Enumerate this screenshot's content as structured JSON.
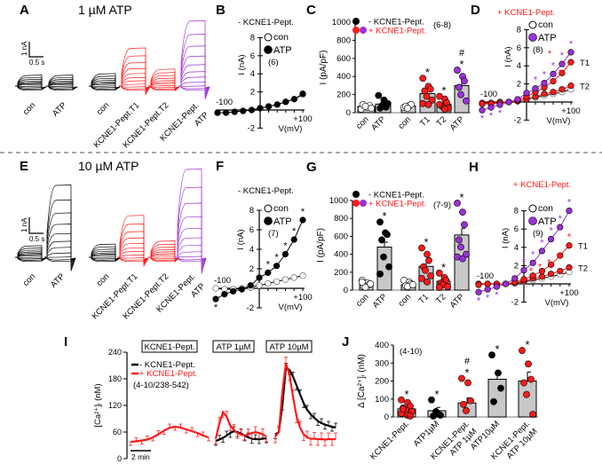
{
  "chart_data": [
    {
      "id": "A",
      "panel": "A",
      "type": "traces",
      "title": "1 µM ATP",
      "scale": {
        "y": "1 nA",
        "x": "0.5 s"
      },
      "groups": [
        {
          "label": [
            "con"
          ],
          "color": "#000000",
          "peak_nA": 0.7
        },
        {
          "label": [
            "ATP"
          ],
          "color": "#000000",
          "peak_nA": 0.7
        },
        {
          "label": [
            "con"
          ],
          "color": "#000000",
          "peak_nA": 0.8
        },
        {
          "label": [
            "KCNE1-Pept.T1"
          ],
          "color": "#ff1a1a",
          "peak_nA": 2.5
        },
        {
          "label": [
            "KCNE1-Pept.T2"
          ],
          "color": "#ff1a1a",
          "peak_nA": 1.1
        },
        {
          "label": [
            "KCNE1-Pept.",
            "ATP"
          ],
          "color": "#9b30d9",
          "peak_nA": 4.3
        }
      ]
    },
    {
      "id": "B",
      "panel": "B",
      "type": "line",
      "subtitle": "- KCNE1-Pept.",
      "subtitle_color": "#000000",
      "xlabel": "V(mV)",
      "ylabel": "I (nA)",
      "xlim": [
        -100,
        100
      ],
      "ylim": [
        -2,
        8
      ],
      "x_tick_labels": [
        "-100",
        "+100"
      ],
      "y_ticks": [
        -2,
        2,
        4,
        6,
        8
      ],
      "y_tick_labels": [
        "-2",
        "2",
        "4",
        "6",
        "8"
      ],
      "n": "(6)",
      "x": [
        -100,
        -80,
        -60,
        -40,
        -20,
        0,
        20,
        40,
        60,
        80,
        100
      ],
      "series": [
        {
          "name": "con",
          "style": "open",
          "color": "#000000",
          "values": [
            -0.3,
            -0.3,
            -0.2,
            -0.1,
            0,
            0.2,
            0.4,
            0.6,
            0.9,
            1.2,
            1.7
          ],
          "stars": [],
          "end_label": ""
        },
        {
          "name": "ATP",
          "style": "filled",
          "color": "#000000",
          "values": [
            -0.3,
            -0.3,
            -0.2,
            -0.1,
            0,
            0.2,
            0.4,
            0.6,
            0.9,
            1.2,
            1.8
          ],
          "stars": [],
          "end_label": ""
        }
      ]
    },
    {
      "id": "C",
      "panel": "C",
      "type": "bar",
      "ylabel": "I (pA/pF)",
      "ylim": [
        0,
        1000
      ],
      "y_ticks": [
        0,
        200,
        400,
        600,
        800,
        1000
      ],
      "y_tick_labels": [
        "0",
        "200",
        "400",
        "600",
        "800",
        "1000"
      ],
      "legend": [
        {
          "label": "- KCNE1-Pept.",
          "colors": [
            "#000000"
          ],
          "text_color": "#000000"
        },
        {
          "label": "+ KCNE1-Pept.",
          "colors": [
            "#ff1a1a",
            "#9b30d9"
          ],
          "text_color": "#ff1a1a"
        }
      ],
      "n": "(6-8)",
      "categories": [
        [
          "con"
        ],
        [
          "ATP"
        ],
        [
          "con"
        ],
        [
          "T1"
        ],
        [
          "T2"
        ],
        [
          "ATP"
        ]
      ],
      "values": [
        70,
        95,
        75,
        210,
        95,
        300
      ],
      "sem": [
        15,
        25,
        12,
        35,
        20,
        55
      ],
      "points": [
        [
          40,
          60,
          80,
          90,
          70,
          50
        ],
        [
          190,
          140,
          60,
          50,
          80,
          100
        ],
        [
          60,
          80,
          90,
          70,
          50
        ],
        [
          380,
          290,
          260,
          240,
          180,
          140,
          100,
          90
        ],
        [
          180,
          150,
          110,
          80,
          60,
          50,
          90,
          40
        ],
        [
          470,
          400,
          350,
          280,
          200,
          130
        ]
      ],
      "point_colors": [
        "#ffffff",
        "#000000",
        "#ffffff",
        "#ff1a1a",
        "#ff1a1a",
        "#9b30d9"
      ],
      "marks": [
        [],
        [],
        [],
        [
          "*"
        ],
        [
          "*"
        ],
        [
          "#",
          "*"
        ]
      ]
    },
    {
      "id": "D",
      "panel": "D",
      "type": "line",
      "subtitle": "+ KCNE1-Pept.",
      "subtitle_color": "#ff1a1a",
      "xlabel": "V(mV)",
      "ylabel": "I (nA)",
      "xlim": [
        -100,
        100
      ],
      "ylim": [
        -2,
        8
      ],
      "x_tick_labels": [
        "-100",
        "+100"
      ],
      "y_ticks": [
        -2,
        2,
        4,
        6,
        8
      ],
      "y_tick_labels": [
        "-2",
        "2",
        "4",
        "6",
        "8"
      ],
      "n": "(8)",
      "x": [
        -100,
        -80,
        -60,
        -40,
        -20,
        0,
        20,
        40,
        60,
        80,
        100
      ],
      "series": [
        {
          "name": "con",
          "style": "open",
          "color": "#000000",
          "values": [
            -0.2,
            -0.2,
            -0.1,
            0,
            0.1,
            0.3,
            0.5,
            0.7,
            0.9,
            1.1,
            1.4
          ],
          "stars": [],
          "end_label": ""
        },
        {
          "name": "T2",
          "style": "filled",
          "color": "#ff1a1a",
          "values": [
            -0.1,
            -0.1,
            0,
            0,
            0.1,
            0.3,
            0.6,
            0.9,
            1.1,
            1.4,
            1.8
          ],
          "stars": [],
          "end_label": "T2"
        },
        {
          "name": "T1",
          "style": "filled",
          "color": "#ff1a1a",
          "values": [
            -0.2,
            -0.2,
            -0.1,
            0,
            0.2,
            0.6,
            1.1,
            1.6,
            2.3,
            3.2,
            4.4
          ],
          "stars": [
            8,
            9,
            10
          ],
          "end_label": "T1"
        },
        {
          "name": "ATP",
          "style": "filled",
          "color": "#9b30d9",
          "values": [
            -0.9,
            -0.6,
            -0.3,
            0,
            0.3,
            1.0,
            1.5,
            2.1,
            3.1,
            4.2,
            5.5
          ],
          "stars": [
            0,
            1,
            2,
            6,
            7,
            8,
            9,
            10
          ],
          "end_label": ""
        }
      ],
      "legend": [
        "con",
        "ATP"
      ]
    },
    {
      "id": "E",
      "panel": "E",
      "type": "traces",
      "title": "10 µM ATP",
      "scale": {
        "y": "1 nA",
        "x": "0.5 s"
      },
      "groups": [
        {
          "label": [
            "con"
          ],
          "color": "#000000",
          "peak_nA": 0.7
        },
        {
          "label": [
            "ATP"
          ],
          "color": "#000000",
          "peak_nA": 4.5
        },
        {
          "label": [
            "con"
          ],
          "color": "#000000",
          "peak_nA": 0.8
        },
        {
          "label": [
            "KCNE1-Pept.T1"
          ],
          "color": "#ff1a1a",
          "peak_nA": 2.6
        },
        {
          "label": [
            "KCNE1-Pept.T2"
          ],
          "color": "#ff1a1a",
          "peak_nA": 1.0
        },
        {
          "label": [
            "KCNE1-Pept.",
            "ATP"
          ],
          "color": "#9b30d9",
          "peak_nA": 5.5
        }
      ]
    },
    {
      "id": "F",
      "panel": "F",
      "type": "line",
      "subtitle": "- KCNE1-Pept.",
      "subtitle_color": "#000000",
      "xlabel": "V(mV)",
      "ylabel": "I (nA)",
      "xlim": [
        -100,
        100
      ],
      "ylim": [
        -2,
        8
      ],
      "x_tick_labels": [
        "-100",
        "+100"
      ],
      "y_ticks": [
        -2,
        2,
        4,
        6,
        8
      ],
      "y_tick_labels": [
        "-2",
        "2",
        "4",
        "6",
        "8"
      ],
      "n": "(7)",
      "x": [
        -100,
        -80,
        -60,
        -40,
        -20,
        0,
        20,
        40,
        60,
        80,
        100
      ],
      "series": [
        {
          "name": "con",
          "style": "open",
          "color": "#000000",
          "values": [
            0,
            -0.1,
            -0.1,
            0,
            0.1,
            0.3,
            0.5,
            0.7,
            0.9,
            1.1,
            1.3
          ],
          "stars": [],
          "end_label": ""
        },
        {
          "name": "ATP",
          "style": "filled",
          "color": "#000000",
          "values": [
            -1.1,
            -0.6,
            -0.3,
            -0.1,
            0.3,
            1.1,
            1.6,
            2.3,
            3.5,
            5.0,
            7.0
          ],
          "stars": [
            0,
            6,
            7,
            8,
            9,
            10
          ],
          "end_label": ""
        }
      ],
      "legend": [
        "con",
        "ATP"
      ]
    },
    {
      "id": "G",
      "panel": "G",
      "type": "bar",
      "ylabel": "I (pA/pF)",
      "ylim": [
        0,
        1000
      ],
      "y_ticks": [
        0,
        200,
        400,
        600,
        800,
        1000
      ],
      "y_tick_labels": [
        "0",
        "200",
        "400",
        "600",
        "800",
        "1000"
      ],
      "legend": [
        {
          "label": "- KCNE1-Pept.",
          "colors": [
            "#000000"
          ],
          "text_color": "#000000"
        },
        {
          "label": "+ KCNE1-Pept.",
          "colors": [
            "#ff1a1a",
            "#9b30d9"
          ],
          "text_color": "#ff1a1a"
        }
      ],
      "n": "(7-9)",
      "categories": [
        [
          "con"
        ],
        [
          "ATP"
        ],
        [
          "con"
        ],
        [
          "T1"
        ],
        [
          "T2"
        ],
        [
          "ATP"
        ]
      ],
      "values": [
        70,
        480,
        60,
        265,
        100,
        615
      ],
      "sem": [
        12,
        55,
        10,
        50,
        20,
        75
      ],
      "points": [
        [
          110,
          80,
          60,
          40,
          30,
          70,
          90
        ],
        [
          760,
          640,
          620,
          560,
          370,
          260,
          180
        ],
        [
          110,
          90,
          70,
          50,
          40,
          60
        ],
        [
          470,
          400,
          330,
          260,
          220,
          160,
          130,
          90
        ],
        [
          190,
          140,
          110,
          80,
          60,
          40,
          30
        ],
        [
          970,
          870,
          730,
          560,
          480,
          400,
          370,
          350
        ]
      ],
      "point_colors": [
        "#ffffff",
        "#000000",
        "#ffffff",
        "#ff1a1a",
        "#ff1a1a",
        "#9b30d9"
      ],
      "marks": [
        [],
        [
          "*"
        ],
        [],
        [
          "*"
        ],
        [
          "*"
        ],
        [
          "*"
        ]
      ]
    },
    {
      "id": "H",
      "panel": "H",
      "type": "line",
      "subtitle": "+ KCNE1-Pept.",
      "subtitle_color": "#ff1a1a",
      "xlabel": "V(mV)",
      "ylabel": "I (nA)",
      "xlim": [
        -100,
        100
      ],
      "ylim": [
        -2,
        8
      ],
      "x_tick_labels": [
        "-100",
        "+100"
      ],
      "y_ticks": [
        -2,
        2,
        4,
        6,
        8
      ],
      "y_tick_labels": [
        "-2",
        "2",
        "4",
        "6",
        "8"
      ],
      "n": "(9)",
      "x": [
        -100,
        -80,
        -60,
        -40,
        -20,
        0,
        20,
        40,
        60,
        80,
        100
      ],
      "series": [
        {
          "name": "con",
          "style": "open",
          "color": "#000000",
          "values": [
            0,
            0,
            0,
            0,
            0.1,
            0.2,
            0.4,
            0.6,
            0.8,
            1.0,
            1.3
          ],
          "stars": [],
          "end_label": ""
        },
        {
          "name": "T2",
          "style": "filled",
          "color": "#ff1a1a",
          "values": [
            0,
            0,
            0,
            0,
            0.1,
            0.3,
            0.6,
            0.8,
            1.1,
            1.4,
            1.8
          ],
          "stars": [],
          "end_label": "T2"
        },
        {
          "name": "T1",
          "style": "filled",
          "color": "#ff1a1a",
          "values": [
            -0.1,
            0,
            0,
            0,
            0.2,
            0.5,
            0.9,
            1.4,
            2.1,
            3.1,
            4.2
          ],
          "stars": [
            5,
            6,
            7,
            8,
            10
          ],
          "end_label": "T1"
        },
        {
          "name": "ATP",
          "style": "filled",
          "color": "#9b30d9",
          "values": [
            -0.9,
            -0.6,
            -0.3,
            0,
            0.6,
            1.5,
            2.3,
            3.6,
            4.9,
            6.2,
            8.0
          ],
          "stars": [
            0,
            1,
            2,
            5,
            6,
            7,
            8,
            9,
            10
          ],
          "end_label": ""
        }
      ],
      "legend": [
        "con",
        "ATP"
      ]
    },
    {
      "id": "I",
      "panel": "I",
      "type": "line",
      "ylabel": "[Ca²⁺]ᵢ (nM)",
      "ylim": [
        0,
        240
      ],
      "y_ticks": [
        0,
        60,
        120,
        180,
        240
      ],
      "y_tick_labels": [
        "0",
        "60",
        "120",
        "180",
        "240"
      ],
      "legend": [
        {
          "label": "- KCNE1-Pept.",
          "color": "#000000"
        },
        {
          "label": "+ KCNE1-Pept.",
          "color": "#ff1a1a"
        }
      ],
      "n": "(4-10/238-542)",
      "scale_bar": "2 min",
      "segments": [
        {
          "stimulus": "KCNE1-Pept.",
          "series": [
            {
              "name": "+ KCNE1-Pept.",
              "color": "#ff1a1a",
              "sem": 8,
              "values": [
                38,
                39,
                41,
                43,
                48,
                55,
                63,
                70,
                72,
                70,
                66,
                62,
                58,
                52,
                48
              ]
            }
          ]
        },
        {
          "stimulus": "ATP 1µM",
          "series": [
            {
              "name": "- KCNE1-Pept.",
              "color": "#000000",
              "sem": 10,
              "values": [
                40,
                43,
                47,
                52,
                58,
                62,
                60,
                57,
                52,
                48,
                45,
                44,
                44,
                45,
                46
              ]
            },
            {
              "name": "+ KCNE1-Pept.",
              "color": "#ff1a1a",
              "sem": 12,
              "values": [
                45,
                80,
                105,
                95,
                75,
                65,
                58,
                54,
                52,
                55,
                58,
                60,
                58,
                55,
                50
              ]
            }
          ]
        },
        {
          "stimulus": "ATP 10µM",
          "series": [
            {
              "name": "- KCNE1-Pept.",
              "color": "#000000",
              "sem": 10,
              "values": [
                55,
                60,
                120,
                205,
                200,
                185,
                165,
                145,
                125,
                110,
                100,
                92,
                85,
                80,
                77,
                74,
                72,
                70
              ]
            },
            {
              "name": "+ KCNE1-Pept.",
              "color": "#ff1a1a",
              "sem": 14,
              "values": [
                50,
                60,
                150,
                215,
                190,
                140,
                95,
                70,
                55,
                48,
                45,
                45,
                44,
                44,
                43,
                44,
                44,
                44
              ]
            }
          ]
        }
      ]
    },
    {
      "id": "J",
      "panel": "J",
      "type": "bar",
      "ylabel": "Δ [Ca²⁺]ᵢ (nM)",
      "ylim": [
        0,
        400
      ],
      "y_ticks": [
        0,
        100,
        200,
        300,
        400
      ],
      "y_tick_labels": [
        "0",
        "100",
        "200",
        "300",
        "400"
      ],
      "legend": [],
      "n": "(4-10)",
      "categories": [
        [
          "KCNE1-Pept."
        ],
        [
          "ATP1µM"
        ],
        [
          "KCNE1-Pept.",
          "ATP 1µM"
        ],
        [
          "ATP10µM"
        ],
        [
          "KCNE1-Pept.",
          "ATP 10µM"
        ]
      ],
      "values": [
        45,
        35,
        78,
        210,
        200
      ],
      "sem": [
        10,
        18,
        28,
        25,
        50
      ],
      "points": [
        [
          95,
          80,
          60,
          50,
          40,
          30,
          20,
          10,
          5,
          45
        ],
        [
          95,
          20,
          10,
          5,
          30
        ],
        [
          215,
          190,
          90,
          70,
          35
        ],
        [
          345,
          245,
          160,
          85
        ],
        [
          370,
          295,
          210,
          190,
          125,
          15
        ]
      ],
      "point_colors": [
        "#ff1a1a",
        "#000000",
        "#ff1a1a",
        "#000000",
        "#ff1a1a"
      ],
      "marks": [
        [
          "*"
        ],
        [
          "*"
        ],
        [
          "#",
          "*"
        ],
        [
          "*"
        ],
        [
          "*"
        ]
      ]
    }
  ]
}
